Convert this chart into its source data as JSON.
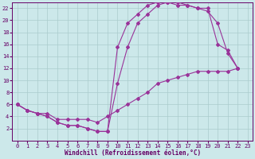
{
  "bg_color": "#cce8ea",
  "grid_color": "#aacccc",
  "line_color": "#993399",
  "marker_color": "#993399",
  "xlabel": "Windchill (Refroidissement éolien,°C)",
  "xlabel_color": "#660066",
  "tick_color": "#660066",
  "xlim": [
    -0.5,
    23.5
  ],
  "ylim": [
    0,
    23
  ],
  "xticks": [
    0,
    1,
    2,
    3,
    4,
    5,
    6,
    7,
    8,
    9,
    10,
    11,
    12,
    13,
    14,
    15,
    16,
    17,
    18,
    19,
    20,
    21,
    22,
    23
  ],
  "yticks": [
    2,
    4,
    6,
    8,
    10,
    12,
    14,
    16,
    18,
    20,
    22
  ],
  "curve1_x": [
    0,
    1,
    2,
    3,
    4,
    5,
    6,
    7,
    8,
    9,
    10,
    11,
    12,
    13,
    14,
    15,
    16,
    17,
    18,
    19,
    20,
    21,
    22
  ],
  "curve1_y": [
    6.0,
    5.0,
    4.5,
    4.5,
    3.5,
    3.5,
    3.5,
    3.5,
    3.0,
    4.0,
    5.0,
    6.0,
    7.0,
    8.0,
    9.5,
    10.0,
    10.5,
    11.0,
    11.5,
    11.5,
    11.5,
    11.5,
    12.0
  ],
  "curve2_x": [
    0,
    1,
    2,
    3,
    4,
    5,
    6,
    7,
    8,
    9,
    10,
    11,
    12,
    13,
    14,
    15,
    16,
    17,
    18,
    19,
    20,
    21,
    22
  ],
  "curve2_y": [
    6.0,
    5.0,
    4.5,
    4.0,
    3.0,
    2.5,
    2.5,
    2.0,
    1.5,
    1.5,
    9.5,
    15.5,
    19.5,
    21.0,
    22.5,
    23.0,
    23.0,
    22.5,
    22.0,
    21.5,
    19.5,
    14.5,
    12.0
  ],
  "curve3_x": [
    0,
    1,
    2,
    3,
    4,
    5,
    6,
    7,
    8,
    9,
    10,
    11,
    12,
    13,
    14,
    15,
    16,
    17,
    18,
    19,
    20,
    21,
    22
  ],
  "curve3_y": [
    6.0,
    5.0,
    4.5,
    4.0,
    3.0,
    2.5,
    2.5,
    2.0,
    1.5,
    1.5,
    15.5,
    19.5,
    21.0,
    22.5,
    23.0,
    23.0,
    22.5,
    22.5,
    22.0,
    22.0,
    16.0,
    15.0,
    12.0
  ]
}
